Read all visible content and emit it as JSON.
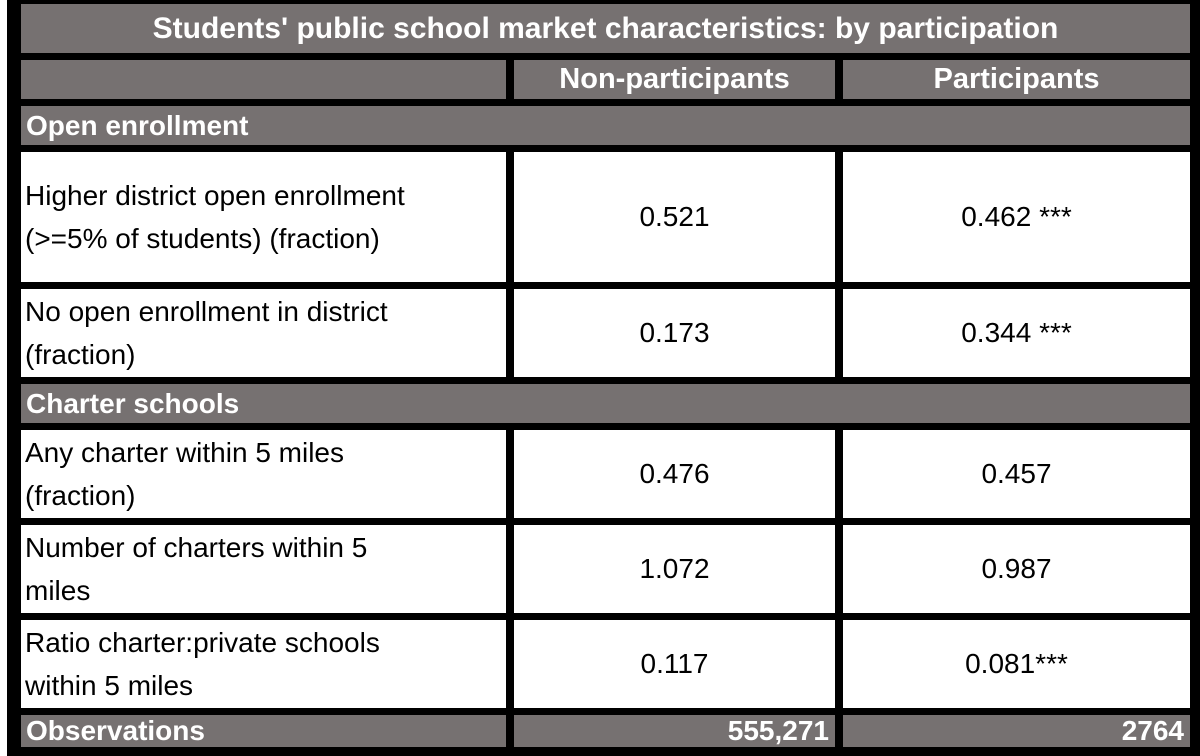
{
  "table": {
    "title": "Students' public school market characteristics: by participation",
    "columns": {
      "col1": "",
      "col2": "Non-participants",
      "col3": "Participants"
    },
    "sections": [
      {
        "label": "Open enrollment",
        "rows": [
          {
            "label": "Higher district open enrollment\n(>=5% of students) (fraction)",
            "values": [
              "0.521",
              "0.462 ***"
            ]
          },
          {
            "label": "No open enrollment in district\n(fraction)",
            "values": [
              "0.173",
              "0.344 ***"
            ]
          }
        ]
      },
      {
        "label": "Charter schools",
        "rows": [
          {
            "label": "Any charter within 5 miles\n(fraction)",
            "values": [
              "0.476",
              "0.457"
            ]
          },
          {
            "label": "Number of charters within 5\nmiles",
            "values": [
              "1.072",
              "0.987"
            ]
          },
          {
            "label": "Ratio charter:private schools\nwithin 5 miles",
            "values": [
              "0.117",
              "0.081***"
            ]
          }
        ]
      }
    ],
    "footer": {
      "label": "Observations",
      "values": [
        "555,271",
        "2764"
      ]
    }
  },
  "colors": {
    "band_bg": "#767171",
    "band_text": "#ffffff",
    "grid_border": "#000000",
    "cell_bg": "#ffffff",
    "body_text": "#000000"
  },
  "chart_data": {
    "type": "table",
    "title": "Students' public school market characteristics: by participation",
    "columns": [
      "",
      "Non-participants",
      "Participants"
    ],
    "rows": [
      [
        "Open enrollment",
        "",
        ""
      ],
      [
        "Higher district open enrollment (>=5% of students) (fraction)",
        "0.521",
        "0.462 ***"
      ],
      [
        "No open enrollment in district (fraction)",
        "0.173",
        "0.344 ***"
      ],
      [
        "Charter schools",
        "",
        ""
      ],
      [
        "Any charter within 5 miles (fraction)",
        "0.476",
        "0.457"
      ],
      [
        "Number of charters within 5 miles",
        "1.072",
        "0.987"
      ],
      [
        "Ratio charter:private schools within 5 miles",
        "0.117",
        "0.081***"
      ],
      [
        "Observations",
        "555,271",
        "2764"
      ]
    ]
  }
}
